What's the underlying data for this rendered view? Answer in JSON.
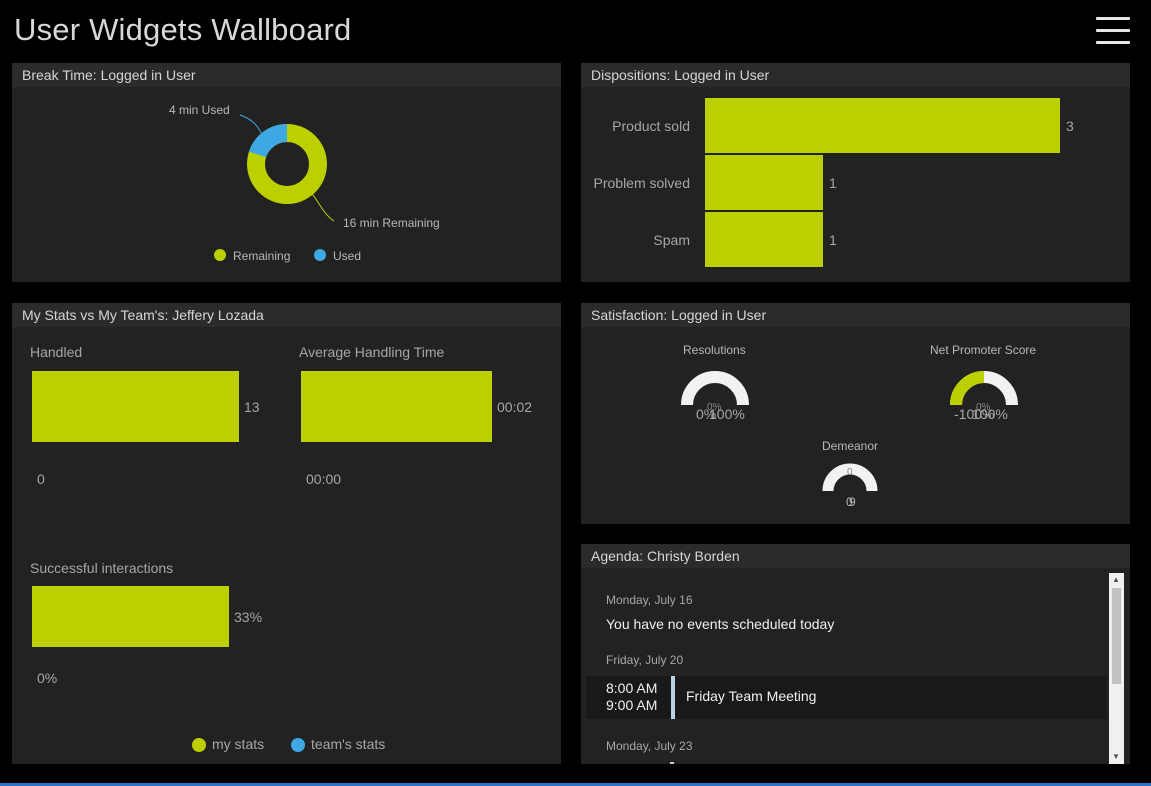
{
  "app": {
    "title": "User Widgets Wallboard",
    "menu_icon": "hamburger-menu-icon"
  },
  "colors": {
    "accent": "#bcd000",
    "secondary": "#3ea8e4",
    "panel_bg": "#222222",
    "header_bg": "#2b2b2b"
  },
  "break_time": {
    "title": "Break Time: Logged in User",
    "used_minutes": 4,
    "remaining_minutes": 16,
    "used_label": "4 min Used",
    "remaining_label": "16 min Remaining",
    "legend": {
      "remaining": "Remaining",
      "used": "Used"
    }
  },
  "dispositions": {
    "title": "Dispositions: Logged in User",
    "rows": [
      {
        "label": "Product sold",
        "value": "3"
      },
      {
        "label": "Problem solved",
        "value": "1"
      },
      {
        "label": "Spam",
        "value": "1"
      }
    ]
  },
  "my_stats": {
    "title": "My Stats vs My Team's: Jeffery Lozada",
    "handled": {
      "label": "Handled",
      "value": "13",
      "axis_min": "0"
    },
    "aht": {
      "label": "Average Handling Time",
      "value": "00:02",
      "axis_min": "00:00"
    },
    "successful": {
      "label": "Successful interactions",
      "value": "33%",
      "axis_min": "0%"
    },
    "legend": {
      "mine": "my stats",
      "team": "team's stats"
    }
  },
  "satisfaction": {
    "title": "Satisfaction: Logged in User",
    "resolutions": {
      "label": "Resolutions",
      "value": "0%",
      "range_low": "0%",
      "range_high": "100%",
      "fill": 0
    },
    "nps": {
      "label": "Net Promoter Score",
      "value": "0%",
      "range_low": "-100%",
      "range_high": "100%",
      "fill": 0.5
    },
    "demeanor": {
      "label": "Demeanor",
      "value": "0",
      "range_low": "0",
      "range_high": "9",
      "fill": 0
    }
  },
  "agenda": {
    "title": "Agenda: Christy Borden",
    "days": [
      {
        "date": "Monday, July 16",
        "note": "You have no events scheduled today"
      },
      {
        "date": "Friday, July 20",
        "event": {
          "start": "8:00 AM",
          "end": "9:00 AM",
          "title": "Friday Team Meeting"
        }
      },
      {
        "date": "Monday, July 23"
      }
    ]
  }
}
